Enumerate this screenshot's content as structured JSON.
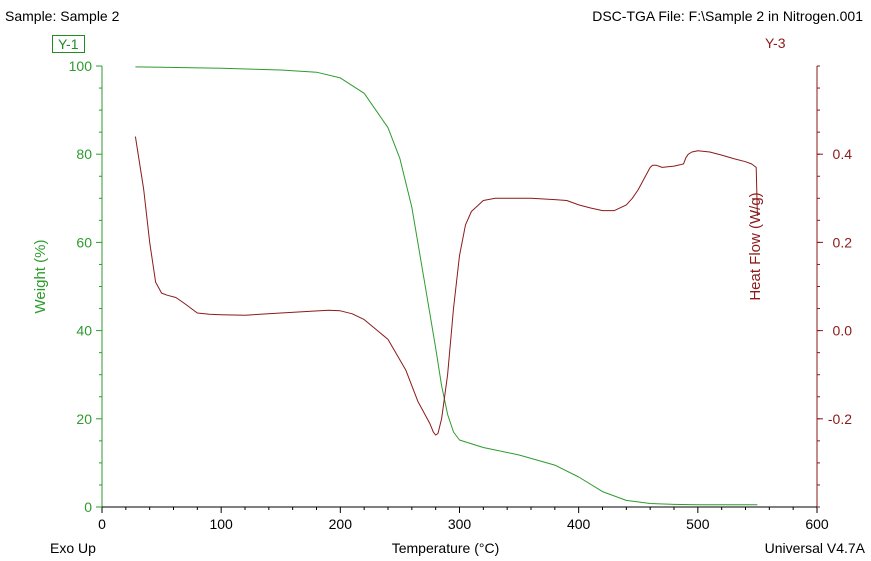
{
  "header": {
    "sample": "Sample: Sample 2",
    "file": "DSC-TGA File: F:\\Sample 2 in Nitrogen.001"
  },
  "footer": {
    "left": "Exo Up",
    "right": "Universal V4.7A"
  },
  "colors": {
    "weight": "#2e9b2e",
    "heat": "#8b1a1a",
    "axis": "#000000"
  },
  "chart_data": {
    "type": "line",
    "xlabel": "Temperature (°C)",
    "xlim": [
      0,
      600
    ],
    "x_ticks": [
      0,
      100,
      200,
      300,
      400,
      500,
      600
    ],
    "y1": {
      "tag": "Y-1",
      "label": "Weight (%)",
      "lim": [
        0,
        100
      ],
      "ticks": [
        0,
        20,
        40,
        60,
        80,
        100
      ]
    },
    "y2": {
      "tag": "Y-3",
      "label": "Heat Flow (W/g)",
      "lim": [
        -0.4,
        0.6
      ],
      "ticks": [
        -0.2,
        0.0,
        0.2,
        0.4
      ],
      "tick_labels": [
        "-0.2",
        "0.0",
        "0.2",
        "0.4"
      ]
    },
    "series": [
      {
        "axis": "y1",
        "x": [
          28,
          50,
          100,
          150,
          180,
          200,
          220,
          240,
          250,
          260,
          270,
          280,
          285,
          290,
          295,
          300,
          320,
          350,
          380,
          400,
          420,
          440,
          460,
          480,
          500,
          550
        ],
        "y": [
          99.8,
          99.7,
          99.5,
          99.1,
          98.6,
          97.3,
          93.8,
          86.0,
          79.0,
          68.0,
          52.0,
          36.0,
          27.5,
          21.0,
          17.0,
          15.2,
          13.5,
          11.8,
          9.5,
          6.8,
          3.5,
          1.5,
          0.8,
          0.6,
          0.5,
          0.5
        ]
      },
      {
        "axis": "y2",
        "x": [
          28,
          35,
          40,
          45,
          50,
          55,
          62,
          70,
          80,
          90,
          100,
          120,
          150,
          170,
          190,
          200,
          210,
          220,
          240,
          255,
          265,
          275,
          278,
          280,
          282,
          285,
          290,
          295,
          300,
          305,
          310,
          320,
          330,
          340,
          360,
          380,
          390,
          400,
          410,
          420,
          430,
          440,
          445,
          450,
          455,
          460,
          462,
          465,
          470,
          480,
          485,
          488,
          490,
          492,
          495,
          500,
          510,
          520,
          530,
          540,
          545,
          549,
          550
        ],
        "y": [
          0.44,
          0.32,
          0.2,
          0.11,
          0.085,
          0.08,
          0.075,
          0.06,
          0.04,
          0.037,
          0.036,
          0.035,
          0.04,
          0.043,
          0.046,
          0.045,
          0.038,
          0.025,
          -0.02,
          -0.09,
          -0.16,
          -0.21,
          -0.23,
          -0.237,
          -0.233,
          -0.2,
          -0.1,
          0.05,
          0.17,
          0.24,
          0.27,
          0.295,
          0.3,
          0.3,
          0.3,
          0.297,
          0.295,
          0.285,
          0.278,
          0.272,
          0.272,
          0.285,
          0.3,
          0.32,
          0.345,
          0.37,
          0.375,
          0.375,
          0.37,
          0.373,
          0.376,
          0.378,
          0.392,
          0.4,
          0.405,
          0.408,
          0.405,
          0.398,
          0.39,
          0.383,
          0.378,
          0.37,
          0.26
        ]
      }
    ]
  }
}
